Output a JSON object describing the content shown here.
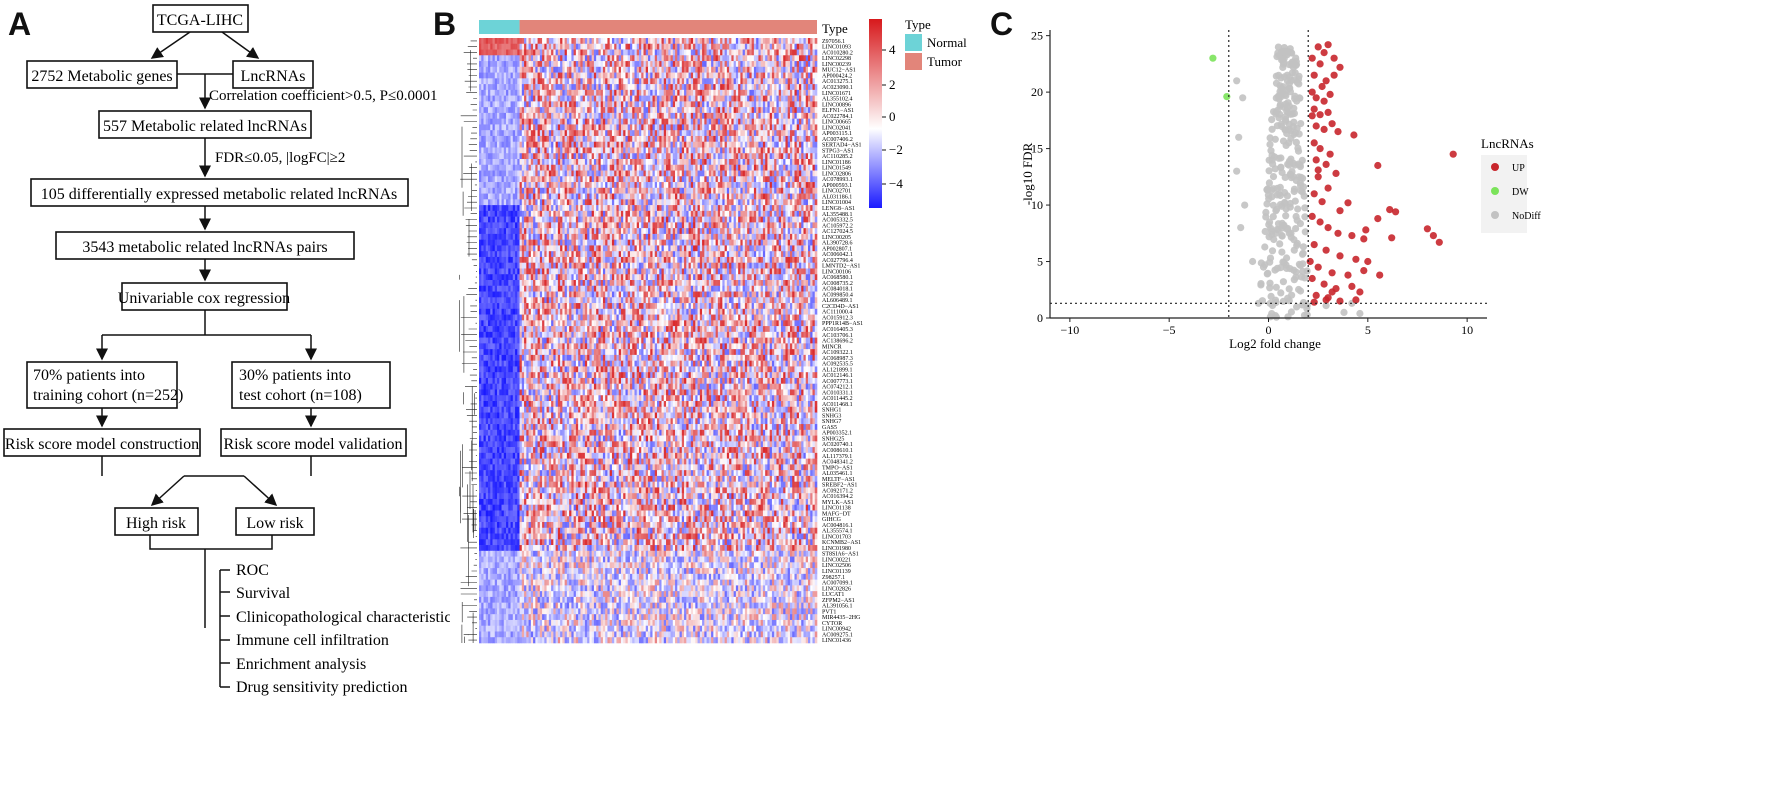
{
  "panels": {
    "a": {
      "letter": "A"
    },
    "b": {
      "letter": "B"
    },
    "c": {
      "letter": "C"
    }
  },
  "flowchart": {
    "root": "TCGA-LIHC",
    "genes": "2752 Metabolic genes",
    "lncrnas": "LncRNAs",
    "corr_criterion": "Correlation coefficient>0.5, P≤0.0001",
    "metabolic_related": "557 Metabolic related lncRNAs",
    "fdr_criterion": "FDR≤0.05, |logFC|≥2",
    "diff_expressed": "105 differentially expressed metabolic related lncRNAs",
    "pairs": "3543 metabolic related lncRNAs pairs",
    "cox": "Univariable cox regression",
    "training_line1": "70% patients into",
    "training_line2": "training cohort (n=252)",
    "test_line1": "30% patients into",
    "test_line2": "test cohort (n=108)",
    "construction": "Risk score model construction",
    "validation": "Risk score model validation",
    "high_risk": "High risk",
    "low_risk": "Low risk",
    "analyses": [
      "ROC",
      "Survival",
      "Clinicopathological characteristics",
      "Immune cell infiltration",
      "Enrichment analysis",
      "Drug sensitivity prediction"
    ]
  },
  "heatmap": {
    "type_label": "Type",
    "legend_title": "Type",
    "legend_items": [
      {
        "label": "Normal",
        "color": "#6dd3d7"
      },
      {
        "label": "Tumor",
        "color": "#e2857a"
      }
    ],
    "color_scale": {
      "ticks": [
        "4",
        "2",
        "0",
        "−2",
        "−4"
      ],
      "high": "#d7191c",
      "mid": "#ffffff",
      "low": "#1a1aff"
    },
    "normal_fraction": 0.12,
    "genes": [
      "Z97056.1",
      "LINC01093",
      "AC010280.2",
      "LINC02298",
      "LINC00239",
      "MUC12−AS1",
      "AP000424.2",
      "AC013275.1",
      "AC023090.1",
      "LINC01671",
      "AL355102.4",
      "LINC00896",
      "ELFN1−AS1",
      "AC022784.1",
      "LINC00665",
      "LINC02041",
      "AP003115.1",
      "AC007406.2",
      "SERTAD4−AS1",
      "STPG3−AS1",
      "AC110285.2",
      "LINC01186",
      "LINC01549",
      "LINC02806",
      "AC078993.1",
      "AP000593.1",
      "LINC02701",
      "AL031186.1",
      "LINC01004",
      "LENG8−AS1",
      "AL355488.1",
      "AC005332.5",
      "AC105972.2",
      "AC127024.5",
      "LINC00205",
      "AL390728.6",
      "AP002807.1",
      "AC006042.1",
      "AC027796.4",
      "LMNTD2−AS1",
      "LINC00106",
      "AC068580.1",
      "AC008735.2",
      "AC084018.1",
      "AC099850.4",
      "AL606489.1",
      "C2CD4D−AS1",
      "AC111000.4",
      "AC015912.3",
      "PPP1R14B−AS1",
      "AC016405.3",
      "AC103706.1",
      "AC138696.2",
      "MINCR",
      "AC109322.1",
      "AC068987.3",
      "AC092535.5",
      "AL121899.1",
      "AC012146.1",
      "AC007773.1",
      "AC074212.1",
      "AC010331.1",
      "AC011445.2",
      "AC011468.1",
      "SNHG1",
      "SNHG3",
      "SNHG7",
      "GAS5",
      "AP003352.1",
      "SNHG25",
      "AC020740.1",
      "AC008610.1",
      "AL117379.1",
      "AC048341.2",
      "TMPO−AS1",
      "AL035461.1",
      "MELTF−AS1",
      "SREBF2−AS1",
      "AC092171.2",
      "AC016394.2",
      "MYLK−AS1",
      "LINC01138",
      "MAFG−DT",
      "GIHCG",
      "AC004816.1",
      "AL355574.1",
      "LINC01703",
      "KCNMB2−AS1",
      "LINC01980",
      "ST8SIA6−AS1",
      "LINC00221",
      "LINC02506",
      "LINC01139",
      "Z98257.1",
      "AC007099.1",
      "LINC02826",
      "LUCAT1",
      "ZFPM2−AS1",
      "AL391056.1",
      "PVT1",
      "MIR4435−2HG",
      "CYTOR",
      "LINC00942",
      "AC009275.1",
      "LINC01436"
    ]
  },
  "chart_data": {
    "type": "scatter",
    "title": "",
    "xlabel": "Log2 fold change",
    "ylabel": "-log10 FDR",
    "xlim": [
      -11,
      11
    ],
    "ylim": [
      0,
      25.5
    ],
    "xticks": [
      -10,
      -5,
      0,
      5,
      10
    ],
    "xtick_labels": [
      "−10",
      "−5",
      "0",
      "5",
      "10"
    ],
    "yticks": [
      0,
      5,
      10,
      15,
      20,
      25
    ],
    "threshold_lines": {
      "x": [
        -2,
        2
      ],
      "y": 1.3
    },
    "grid": false,
    "legend": {
      "title": "LncRNAs",
      "position": "right"
    },
    "series": [
      {
        "name": "UP",
        "color": "#c8262c",
        "points": [
          [
            2.2,
            23
          ],
          [
            2.5,
            24
          ],
          [
            2.8,
            23.5
          ],
          [
            3.0,
            24.2
          ],
          [
            3.3,
            23
          ],
          [
            3.6,
            22.2
          ],
          [
            2.3,
            21.5
          ],
          [
            2.6,
            22.5
          ],
          [
            2.9,
            21
          ],
          [
            2.2,
            20
          ],
          [
            2.4,
            19.5
          ],
          [
            2.7,
            20.5
          ],
          [
            3.1,
            19.8
          ],
          [
            2.3,
            18.5
          ],
          [
            2.6,
            18
          ],
          [
            3.0,
            18.2
          ],
          [
            2.4,
            17
          ],
          [
            2.8,
            16.7
          ],
          [
            3.2,
            17.2
          ],
          [
            3.5,
            16.5
          ],
          [
            2.3,
            15.5
          ],
          [
            2.6,
            15
          ],
          [
            3.1,
            14.5
          ],
          [
            2.4,
            14
          ],
          [
            2.9,
            13.6
          ],
          [
            3.4,
            12.8
          ],
          [
            4.3,
            16.2
          ],
          [
            2.5,
            12.5
          ],
          [
            3.0,
            11.5
          ],
          [
            2.3,
            11
          ],
          [
            2.7,
            10.3
          ],
          [
            5.5,
            13.5
          ],
          [
            9.3,
            14.5
          ],
          [
            3.6,
            9.5
          ],
          [
            4.0,
            10.2
          ],
          [
            4.9,
            7.8
          ],
          [
            5.5,
            8.8
          ],
          [
            6.1,
            9.6
          ],
          [
            6.4,
            9.4
          ],
          [
            8.0,
            7.9
          ],
          [
            8.3,
            7.3
          ],
          [
            8.6,
            6.7
          ],
          [
            2.2,
            9
          ],
          [
            2.6,
            8.5
          ],
          [
            3.0,
            8
          ],
          [
            3.5,
            7.5
          ],
          [
            4.2,
            7.3
          ],
          [
            4.8,
            7
          ],
          [
            6.2,
            7.1
          ],
          [
            2.3,
            6.5
          ],
          [
            2.9,
            6
          ],
          [
            3.6,
            5.5
          ],
          [
            4.4,
            5.2
          ],
          [
            5.0,
            5
          ],
          [
            2.1,
            5
          ],
          [
            2.5,
            4.5
          ],
          [
            3.2,
            4
          ],
          [
            4.0,
            3.8
          ],
          [
            4.8,
            4.2
          ],
          [
            5.6,
            3.8
          ],
          [
            2.2,
            3.5
          ],
          [
            2.8,
            3
          ],
          [
            3.4,
            2.6
          ],
          [
            4.2,
            2.8
          ],
          [
            2.4,
            2
          ],
          [
            3.0,
            1.8
          ],
          [
            3.6,
            1.5
          ],
          [
            4.4,
            1.6
          ],
          [
            2.3,
            1.4
          ],
          [
            2.9,
            1.6
          ],
          [
            3.2,
            2.3
          ],
          [
            4.6,
            2.3
          ],
          [
            2.2,
            17.9
          ],
          [
            2.5,
            13.1
          ],
          [
            3.3,
            21.5
          ],
          [
            2.8,
            19.2
          ]
        ]
      },
      {
        "name": "DW",
        "color": "#7be35a",
        "points": [
          [
            -2.8,
            23
          ],
          [
            -2.1,
            19.6
          ]
        ]
      },
      {
        "name": "NoDiff",
        "color": "#c2c2c2",
        "points": []
      }
    ]
  }
}
